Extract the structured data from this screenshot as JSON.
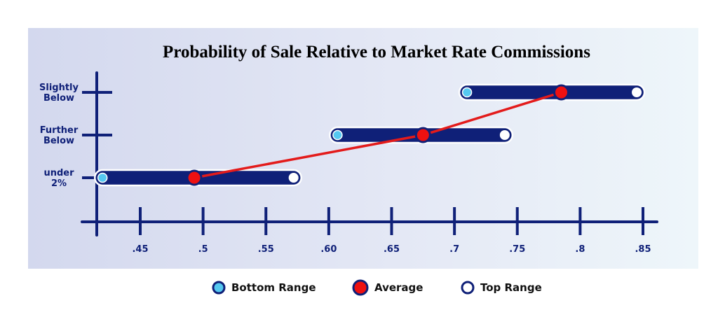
{
  "chart_data": {
    "type": "range-dot",
    "title": "Probability of Sale Relative to Market Rate Commissions",
    "xlabel": "",
    "ylabel": "",
    "x_ticks": [
      ".45",
      ".5",
      ".55",
      ".60",
      ".65",
      ".7",
      ".75",
      ".8",
      ".85"
    ],
    "x_tick_values": [
      0.45,
      0.5,
      0.55,
      0.6,
      0.65,
      0.7,
      0.75,
      0.8,
      0.85
    ],
    "xlim": [
      0.415,
      0.865
    ],
    "categories": [
      {
        "label_lines": [
          "Slightly",
          "Below"
        ],
        "bottom": 0.71,
        "average": 0.785,
        "top": 0.845
      },
      {
        "label_lines": [
          "Further",
          "Below"
        ],
        "bottom": 0.607,
        "average": 0.675,
        "top": 0.74
      },
      {
        "label_lines": [
          "under",
          "2%"
        ],
        "bottom": 0.42,
        "average": 0.493,
        "top": 0.572
      }
    ],
    "series": [
      {
        "name": "Bottom Range",
        "color": "#55c8f0"
      },
      {
        "name": "Average",
        "color": "#ee1111"
      },
      {
        "name": "Top Range",
        "color": "#ffffff"
      }
    ],
    "legend_position": "bottom-center",
    "grid": false,
    "colors": {
      "bar": "#0f2078",
      "axis": "#0f2078",
      "line": "#e31b1b"
    }
  }
}
